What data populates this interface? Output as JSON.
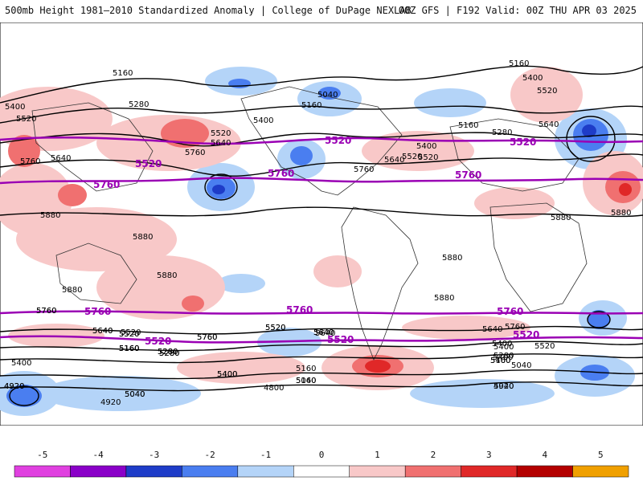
{
  "header": {
    "title_left": "500mb Height 1981–2010 Standardized Anomaly | College of DuPage NEXLAB",
    "title_right": "00Z GFS | F192 Valid: 00Z THU APR 03 2025"
  },
  "map": {
    "contour_labels": [
      "5160",
      "5400",
      "5520",
      "5280",
      "5160",
      "5040",
      "5160",
      "5400",
      "5520",
      "5640",
      "5520",
      "5400",
      "5640",
      "5760",
      "5520",
      "5640",
      "5760",
      "5880",
      "5160",
      "5280",
      "5400",
      "5520",
      "5640",
      "5760",
      "5880",
      "5880",
      "5880",
      "5880",
      "5880",
      "5880",
      "5880",
      "5520",
      "5400",
      "5640",
      "5760",
      "5640",
      "5400",
      "5760",
      "5640",
      "5520",
      "5400",
      "5280",
      "5160",
      "5040",
      "4920",
      "5280",
      "5520",
      "5640",
      "5760",
      "5400",
      "5160",
      "5040",
      "4920",
      "4800",
      "5040",
      "4920",
      "5160",
      "5280",
      "5400",
      "5520",
      "5640",
      "5760",
      "5160",
      "5280",
      "5400",
      "5520",
      "5640",
      "5760",
      "5520",
      "5400",
      "5160",
      "5040",
      "4920",
      "5280",
      "5160",
      "5040"
    ],
    "highlight_labels": [
      "5520",
      "5520",
      "5760",
      "5760",
      "5760",
      "5520",
      "5760",
      "5760",
      "5760",
      "5520",
      "5520",
      "5520"
    ],
    "colors": {
      "neg5": "#e040e0",
      "neg4": "#8a00c8",
      "neg3": "#1e3cc8",
      "neg2": "#4a7ef0",
      "neg1": "#b4d4f8",
      "zero": "#ffffff",
      "pos1": "#f8c8c8",
      "pos2": "#f07070",
      "pos3": "#e02828",
      "pos4": "#b40000",
      "pos5": "#f0a000",
      "highlight_contour": "#9a00b4"
    }
  },
  "colorbar": {
    "ticks": [
      "-5",
      "-4",
      "-3",
      "-2",
      "-1",
      "0",
      "1",
      "2",
      "3",
      "4",
      "5"
    ],
    "colors": [
      "#e040e0",
      "#8a00c8",
      "#1e3cc8",
      "#4a7ef0",
      "#b4d4f8",
      "#ffffff",
      "#f8c8c8",
      "#f07070",
      "#e02828",
      "#b40000",
      "#f0a000"
    ]
  }
}
